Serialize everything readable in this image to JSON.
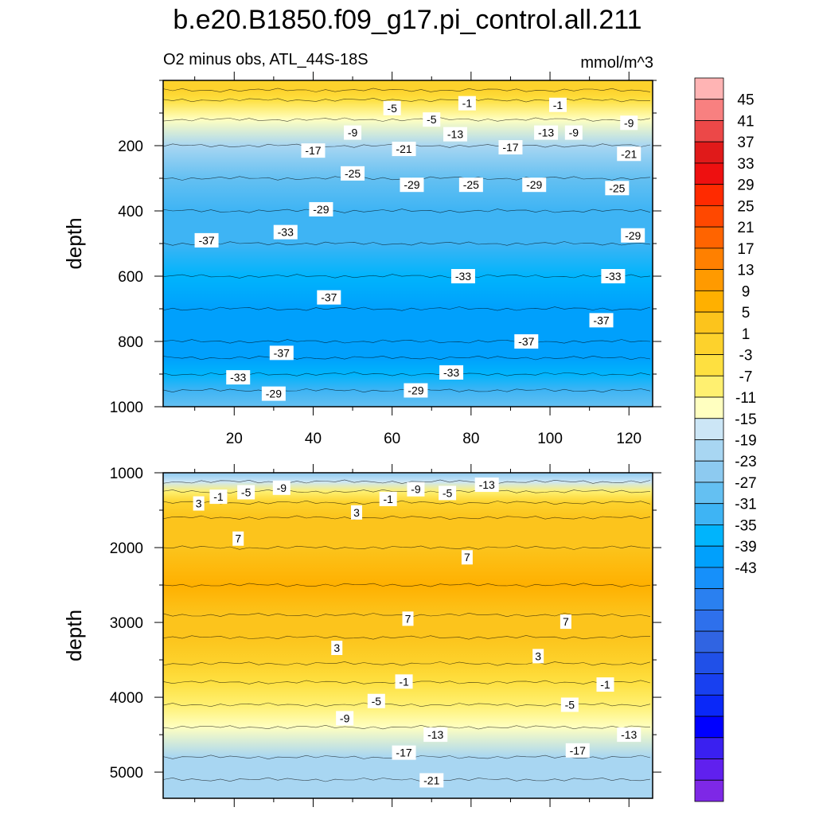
{
  "title": "b.e20.B1850.f09_g17.pi_control.all.211",
  "subtitle": "O2 minus obs, ATL_44S-18S",
  "units": "mmol/m^3",
  "chart_data": [
    {
      "type": "contour",
      "panel": "upper",
      "ylabel": "depth",
      "y_reversed": true,
      "xlim": [
        2,
        126
      ],
      "ylim": [
        0,
        1000
      ],
      "x_ticks": [
        20,
        40,
        60,
        80,
        100,
        120
      ],
      "y_ticks": [
        200,
        400,
        600,
        800,
        1000
      ],
      "profile": [
        [
          0,
          3
        ],
        [
          30,
          3
        ],
        [
          60,
          -3
        ],
        [
          120,
          -11
        ],
        [
          200,
          -19
        ],
        [
          300,
          -25
        ],
        [
          400,
          -29
        ],
        [
          500,
          -31
        ],
        [
          600,
          -33
        ],
        [
          700,
          -37
        ],
        [
          800,
          -39
        ],
        [
          850,
          -37
        ],
        [
          900,
          -33
        ],
        [
          950,
          -29
        ],
        [
          1000,
          -25
        ]
      ],
      "contour_labels": [
        {
          "text": "-5",
          "x": 60,
          "y": 85
        },
        {
          "text": "-1",
          "x": 79,
          "y": 70
        },
        {
          "text": "-1",
          "x": 102,
          "y": 75
        },
        {
          "text": "-5",
          "x": 70,
          "y": 120
        },
        {
          "text": "-9",
          "x": 50,
          "y": 160
        },
        {
          "text": "-13",
          "x": 76,
          "y": 165
        },
        {
          "text": "-13",
          "x": 99,
          "y": 160
        },
        {
          "text": "-9",
          "x": 106,
          "y": 160
        },
        {
          "text": "-9",
          "x": 120,
          "y": 130
        },
        {
          "text": "-17",
          "x": 40,
          "y": 215
        },
        {
          "text": "-21",
          "x": 63,
          "y": 210
        },
        {
          "text": "-17",
          "x": 90,
          "y": 205
        },
        {
          "text": "-21",
          "x": 120,
          "y": 225
        },
        {
          "text": "-25",
          "x": 50,
          "y": 285
        },
        {
          "text": "-29",
          "x": 65,
          "y": 320
        },
        {
          "text": "-25",
          "x": 80,
          "y": 320
        },
        {
          "text": "-29",
          "x": 96,
          "y": 320
        },
        {
          "text": "-25",
          "x": 117,
          "y": 330
        },
        {
          "text": "-29",
          "x": 42,
          "y": 395
        },
        {
          "text": "-33",
          "x": 33,
          "y": 465
        },
        {
          "text": "-37",
          "x": 13,
          "y": 490
        },
        {
          "text": "-29",
          "x": 121,
          "y": 475
        },
        {
          "text": "-33",
          "x": 78,
          "y": 600
        },
        {
          "text": "-33",
          "x": 116,
          "y": 600
        },
        {
          "text": "-37",
          "x": 44,
          "y": 665
        },
        {
          "text": "-37",
          "x": 113,
          "y": 735
        },
        {
          "text": "-37",
          "x": 94,
          "y": 800
        },
        {
          "text": "-37",
          "x": 32,
          "y": 835
        },
        {
          "text": "-33",
          "x": 21,
          "y": 910
        },
        {
          "text": "-33",
          "x": 75,
          "y": 895
        },
        {
          "text": "-29",
          "x": 30,
          "y": 960
        },
        {
          "text": "-29",
          "x": 66,
          "y": 950
        }
      ]
    },
    {
      "type": "contour",
      "panel": "lower",
      "ylabel": "depth",
      "y_reversed": true,
      "xlim": [
        2,
        126
      ],
      "ylim": [
        1000,
        5350
      ],
      "x_ticks": [
        20,
        40,
        60,
        80,
        100,
        120
      ],
      "y_ticks": [
        1000,
        2000,
        3000,
        4000,
        5000
      ],
      "profile": [
        [
          1000,
          -23
        ],
        [
          1120,
          -13
        ],
        [
          1250,
          -5
        ],
        [
          1400,
          1
        ],
        [
          1600,
          5
        ],
        [
          2000,
          7
        ],
        [
          2500,
          9
        ],
        [
          2900,
          7
        ],
        [
          3200,
          5
        ],
        [
          3550,
          1
        ],
        [
          3800,
          -3
        ],
        [
          4100,
          -7
        ],
        [
          4400,
          -11
        ],
        [
          4800,
          -17
        ],
        [
          5100,
          -19
        ],
        [
          5350,
          -19
        ]
      ],
      "contour_labels": [
        {
          "text": "-9",
          "x": 32,
          "y": 1200
        },
        {
          "text": "-5",
          "x": 23,
          "y": 1260
        },
        {
          "text": "-1",
          "x": 16,
          "y": 1320
        },
        {
          "text": "3",
          "x": 11,
          "y": 1410
        },
        {
          "text": "-9",
          "x": 66,
          "y": 1220
        },
        {
          "text": "-13",
          "x": 84,
          "y": 1160
        },
        {
          "text": "-5",
          "x": 74,
          "y": 1270
        },
        {
          "text": "-1",
          "x": 59,
          "y": 1350
        },
        {
          "text": "3",
          "x": 51,
          "y": 1530
        },
        {
          "text": "7",
          "x": 21,
          "y": 1880
        },
        {
          "text": "7",
          "x": 79,
          "y": 2130
        },
        {
          "text": "7",
          "x": 64,
          "y": 2950
        },
        {
          "text": "7",
          "x": 104,
          "y": 2990
        },
        {
          "text": "3",
          "x": 46,
          "y": 3340
        },
        {
          "text": "3",
          "x": 97,
          "y": 3450
        },
        {
          "text": "-1",
          "x": 63,
          "y": 3790
        },
        {
          "text": "-1",
          "x": 114,
          "y": 3830
        },
        {
          "text": "-5",
          "x": 56,
          "y": 4050
        },
        {
          "text": "-5",
          "x": 105,
          "y": 4100
        },
        {
          "text": "-9",
          "x": 48,
          "y": 4280
        },
        {
          "text": "-13",
          "x": 71,
          "y": 4500
        },
        {
          "text": "-13",
          "x": 120,
          "y": 4500
        },
        {
          "text": "-17",
          "x": 63,
          "y": 4740
        },
        {
          "text": "-17",
          "x": 107,
          "y": 4710
        },
        {
          "text": "-21",
          "x": 70,
          "y": 5110
        }
      ]
    }
  ],
  "colorbar": {
    "labels": [
      "45",
      "41",
      "37",
      "33",
      "29",
      "25",
      "21",
      "17",
      "13",
      "9",
      "5",
      "1",
      "-3",
      "-7",
      "-11",
      "-15",
      "-19",
      "-23",
      "-27",
      "-31",
      "-35",
      "-39",
      "-43"
    ],
    "colors": [
      "#ffb4b4",
      "#f88080",
      "#ec4848",
      "#e01a1a",
      "#ee1010",
      "#ff2a00",
      "#ff4800",
      "#ff6400",
      "#ff8000",
      "#ff9a00",
      "#ffb000",
      "#fcc41c",
      "#fdd22c",
      "#fee040",
      "#fff070",
      "#ffffc0",
      "#cce6f6",
      "#a8d6f2",
      "#8dcaf0",
      "#64c0f2",
      "#3eb4f4",
      "#00b4fc",
      "#00a0fc",
      "#1690fa",
      "#2a80f0",
      "#2e70ec",
      "#3064e2",
      "#2050e8",
      "#1840f0",
      "#0a28f8",
      "#0000ff",
      "#3a20f0",
      "#6020ee",
      "#7e28e6"
    ]
  }
}
